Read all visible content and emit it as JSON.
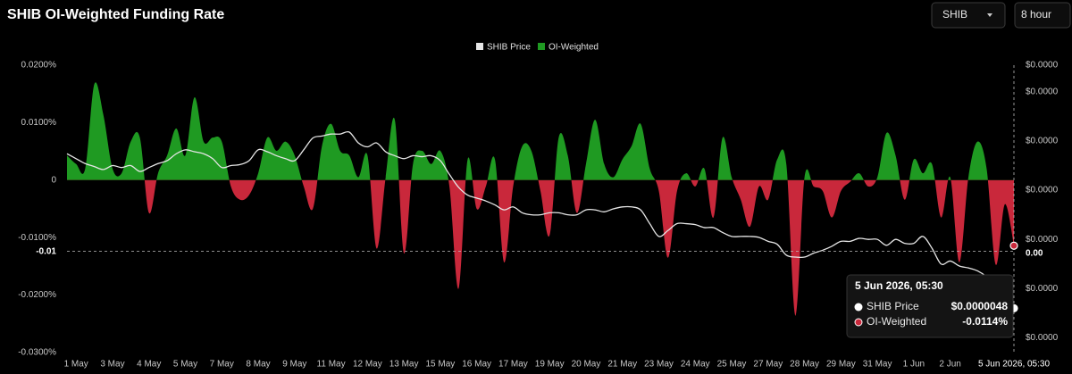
{
  "title": "SHIB OI-Weighted Funding Rate",
  "controls": {
    "symbol": "SHIB",
    "interval": "8 hour"
  },
  "chart_data": {
    "type": "area",
    "categories": [
      null,
      "1 May",
      null,
      null,
      null,
      "3 May",
      null,
      null,
      null,
      "4 May",
      null,
      null,
      null,
      "5 May",
      null,
      null,
      null,
      "7 May",
      null,
      null,
      null,
      "8 May",
      null,
      null,
      null,
      "9 May",
      null,
      null,
      null,
      "11 May",
      null,
      null,
      null,
      "12 May",
      null,
      null,
      null,
      "13 May",
      null,
      null,
      null,
      "15 May",
      null,
      null,
      null,
      "16 May",
      null,
      null,
      null,
      "17 May",
      null,
      null,
      null,
      "19 May",
      null,
      null,
      null,
      "20 May",
      null,
      null,
      null,
      "21 May",
      null,
      null,
      null,
      "23 May",
      null,
      null,
      null,
      "24 May",
      null,
      null,
      null,
      "25 May",
      null,
      null,
      null,
      "27 May",
      null,
      null,
      null,
      "28 May",
      null,
      null,
      null,
      "29 May",
      null,
      null,
      null,
      "31 May",
      null,
      null,
      null,
      "1 Jun",
      null,
      null,
      null,
      "2 Jun",
      null,
      null,
      null,
      null,
      null,
      null,
      "5 Jun 2026, 05:30"
    ],
    "series": [
      {
        "name": "SHIB Price",
        "type": "line",
        "axis": "y2",
        "color": "#e6e6e6",
        "values": [
          6.37e-06,
          6.32e-06,
          6.27e-06,
          6.24e-06,
          6.21e-06,
          6.25e-06,
          6.23e-06,
          6.25e-06,
          6.19e-06,
          6.23e-06,
          6.27e-06,
          6.3e-06,
          6.37e-06,
          6.41e-06,
          6.39e-06,
          6.37e-06,
          6.32e-06,
          6.23e-06,
          6.25e-06,
          6.26e-06,
          6.3e-06,
          6.41e-06,
          6.39e-06,
          6.35e-06,
          6.32e-06,
          6.3e-06,
          6.41e-06,
          6.53e-06,
          6.55e-06,
          6.57e-06,
          6.57e-06,
          6.59e-06,
          6.48e-06,
          6.44e-06,
          6.48e-06,
          6.39e-06,
          6.35e-06,
          6.32e-06,
          6.35e-06,
          6.34e-06,
          6.35e-06,
          6.3e-06,
          6.16e-06,
          6.03e-06,
          5.95e-06,
          5.92e-06,
          5.89e-06,
          5.85e-06,
          5.8e-06,
          5.83e-06,
          5.77e-06,
          5.75e-06,
          5.75e-06,
          5.77e-06,
          5.77e-06,
          5.75e-06,
          5.75e-06,
          5.8e-06,
          5.8e-06,
          5.78e-06,
          5.81e-06,
          5.83e-06,
          5.83e-06,
          5.8e-06,
          5.66e-06,
          5.53e-06,
          5.59e-06,
          5.66e-06,
          5.66e-06,
          5.65e-06,
          5.62e-06,
          5.62e-06,
          5.57e-06,
          5.53e-06,
          5.53e-06,
          5.53e-06,
          5.52e-06,
          5.48e-06,
          5.45e-06,
          5.34e-06,
          5.32e-06,
          5.32e-06,
          5.36e-06,
          5.39e-06,
          5.43e-06,
          5.48e-06,
          5.48e-06,
          5.51e-06,
          5.5e-06,
          5.5e-06,
          5.44e-06,
          5.5e-06,
          5.46e-06,
          5.46e-06,
          5.53e-06,
          5.41e-06,
          5.25e-06,
          5.28e-06,
          5.23e-06,
          5.21e-06,
          5.18e-06,
          5.12e-06,
          5.03e-06,
          4.94e-06,
          4.8e-06
        ]
      },
      {
        "name": "OI-Weighted",
        "type": "area",
        "color": "#1f9a22",
        "negative_color": "#c9283b",
        "values": [
          0.0043,
          0.0028,
          0.002,
          0.0167,
          0.0113,
          0.002,
          0.0012,
          0.0067,
          0.0074,
          -0.0057,
          0.0012,
          0.0043,
          0.009,
          0.0043,
          0.0144,
          0.0067,
          0.0074,
          0.0067,
          -0.0011,
          -0.0034,
          -0.0026,
          0.0012,
          0.0074,
          0.0051,
          0.0067,
          0.0043,
          -0.0011,
          -0.005,
          0.0059,
          0.0098,
          0.0051,
          0.0043,
          0.0005,
          0.0043,
          -0.0119,
          0.0005,
          0.0105,
          -0.0127,
          0.0028,
          0.0051,
          0.0028,
          0.0051,
          -0.0011,
          -0.0189,
          0.0036,
          -0.005,
          -0.0011,
          0.0036,
          -0.0143,
          -0.0011,
          0.0059,
          0.0051,
          -0.0019,
          -0.0096,
          0.0074,
          0.0043,
          -0.0057,
          0.0028,
          0.0105,
          0.0028,
          0.0005,
          0.0036,
          0.0059,
          0.0098,
          0.002,
          -0.0019,
          -0.0135,
          -0.0019,
          0.0012,
          -0.0011,
          0.002,
          -0.0065,
          0.0074,
          0.0005,
          -0.0034,
          -0.0081,
          -0.0011,
          -0.0034,
          0.0036,
          0.0028,
          -0.0236,
          0.0005,
          -0.0011,
          -0.0019,
          -0.0065,
          -0.0019,
          -0.0003,
          0.0012,
          -0.0011,
          0.0005,
          0.0082,
          0.0043,
          -0.0034,
          0.0036,
          0.0012,
          0.0028,
          -0.0065,
          0.0005,
          -0.0143,
          0.0005,
          0.0067,
          0.002,
          -0.0147,
          -0.0042,
          -0.0114
        ]
      }
    ],
    "ylim": [
      -0.03,
      0.02
    ],
    "yticks": [
      {
        "value": 0.02,
        "label": "0.0200%"
      },
      {
        "value": 0.01,
        "label": "0.0100%"
      },
      0,
      {
        "value": -0.01,
        "label": "-0.0100%"
      },
      {
        "value": -0.02,
        "label": "-0.0200%"
      },
      {
        "value": -0.03,
        "label": "-0.0300%"
      }
    ],
    "y2lim": [
      4.35e-06,
      7.27e-06
    ],
    "y2ticks": [
      {
        "value": 7.27e-06,
        "label": "$0.0000"
      },
      {
        "value": 7e-06,
        "label": "$0.0000"
      },
      {
        "value": 6.5e-06,
        "label": "$0.0000"
      },
      {
        "value": 6e-06,
        "label": "$0.0000"
      },
      {
        "value": 5.5e-06,
        "label": "$0.0000"
      },
      {
        "value": 5e-06,
        "label": "$0.0000"
      },
      {
        "value": 4.5e-06,
        "label": "$0.0000"
      }
    ],
    "grid": false,
    "legend": "top",
    "crosshair": {
      "y": -0.0124,
      "y_label": "-0.01",
      "y2": 5.36e-06,
      "y2_label": "0.00"
    },
    "tooltip": {
      "index": 104,
      "value_labels": [
        "$0.0000048",
        "-0.0114%"
      ]
    }
  }
}
